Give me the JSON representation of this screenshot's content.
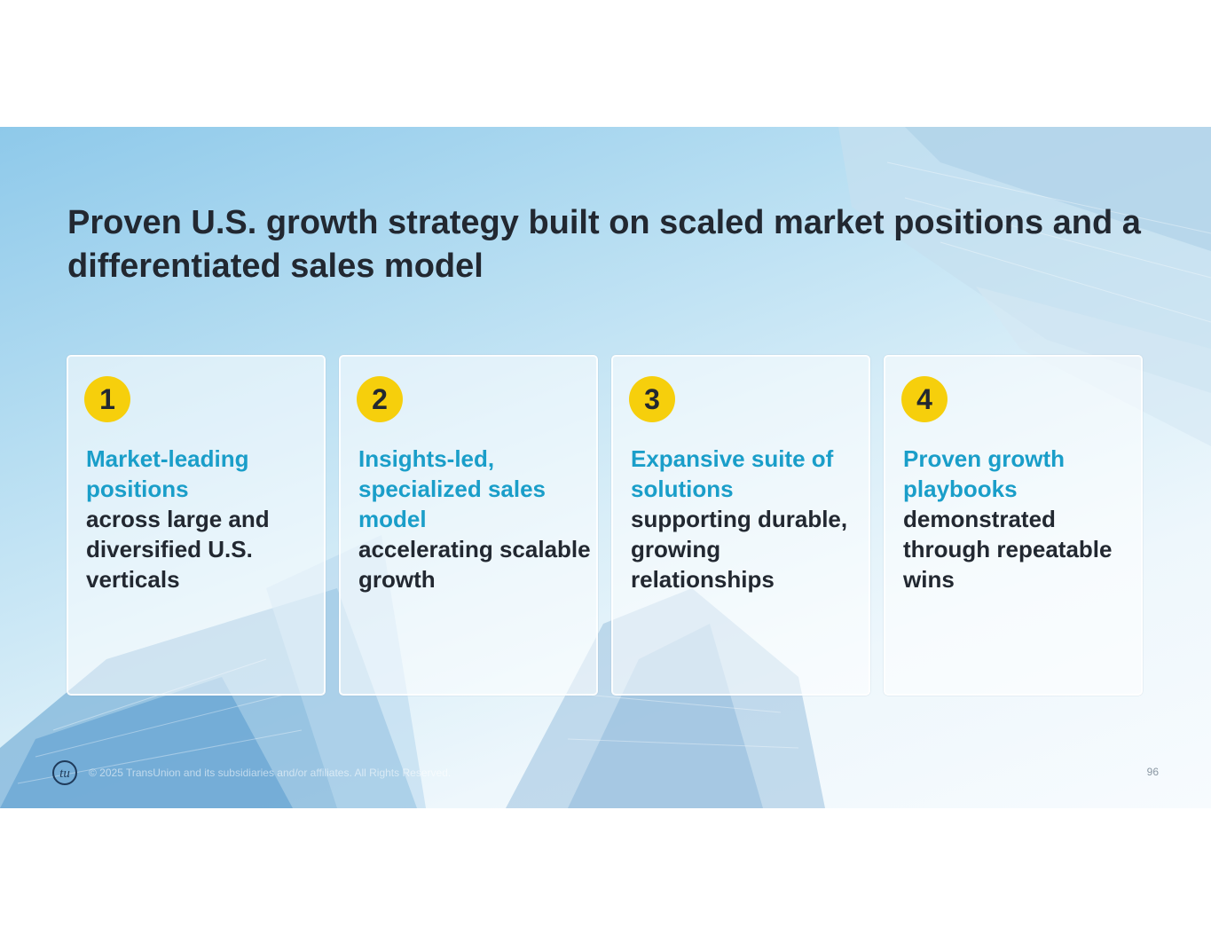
{
  "slide": {
    "title": "Proven U.S. growth strategy built on scaled market positions and a differentiated sales model",
    "cards": [
      {
        "number": "1",
        "highlight": "Market-leading positions",
        "body": "across large and diversified U.S. verticals"
      },
      {
        "number": "2",
        "highlight": "Insights-led, specialized sales model",
        "body": "accelerating scalable growth"
      },
      {
        "number": "3",
        "highlight": "Expansive suite of solutions",
        "body": "supporting durable, growing relationships"
      },
      {
        "number": "4",
        "highlight": "Proven growth playbooks",
        "body": "demonstrated through repeatable wins"
      }
    ],
    "footer": {
      "logo": "tu",
      "copyright": "© 2025 TransUnion and its subsidiaries and/or affiliates. All Rights Reserved.",
      "page_number": "96"
    }
  },
  "colors": {
    "badge": "#f6cf0c",
    "highlight_text": "#1a9ec9",
    "body_text": "#222831"
  },
  "icons": {
    "footer_logo": "transunion-logo-icon",
    "background": "glass-skyscrapers-image"
  }
}
